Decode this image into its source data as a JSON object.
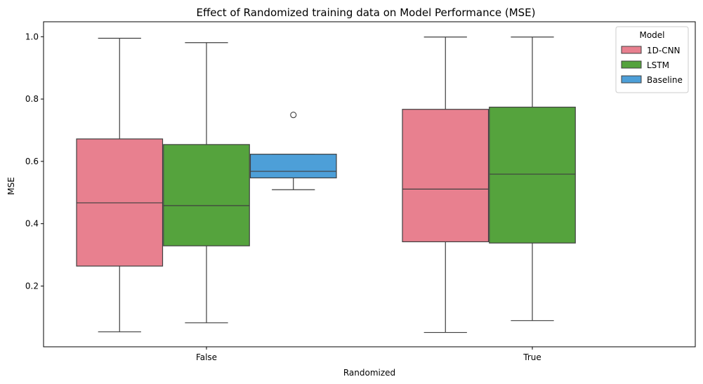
{
  "chart_data": {
    "type": "box",
    "title": "Effect of Randomized training data on Model Performance (MSE)",
    "xlabel": "Randomized",
    "ylabel": "MSE",
    "categories": [
      "False",
      "True"
    ],
    "y_ticks": [
      "0.2",
      "0.4",
      "0.6",
      "0.8",
      "1.0"
    ],
    "y_tick_values": [
      0.2,
      0.4,
      0.6,
      0.8,
      1.0
    ],
    "ylim": [
      0.005,
      1.048
    ],
    "grid": false,
    "legend": {
      "title": "Model",
      "placement": "top-right",
      "entries": [
        "1D-CNN",
        "LSTM",
        "Baseline"
      ]
    },
    "series": [
      {
        "name": "1D-CNN",
        "color": "#e8808f",
        "boxes": [
          {
            "category": "False",
            "min": 0.053,
            "q1": 0.264,
            "median": 0.467,
            "q3": 0.672,
            "max": 0.995,
            "outliers": []
          },
          {
            "category": "True",
            "min": 0.051,
            "q1": 0.342,
            "median": 0.511,
            "q3": 0.767,
            "max": 0.999,
            "outliers": []
          }
        ]
      },
      {
        "name": "LSTM",
        "color": "#55a33d",
        "boxes": [
          {
            "category": "False",
            "min": 0.082,
            "q1": 0.329,
            "median": 0.458,
            "q3": 0.654,
            "max": 0.981,
            "outliers": []
          },
          {
            "category": "True",
            "min": 0.089,
            "q1": 0.338,
            "median": 0.559,
            "q3": 0.774,
            "max": 0.999,
            "outliers": []
          }
        ]
      },
      {
        "name": "Baseline",
        "color": "#4d9fd8",
        "boxes": [
          {
            "category": "False",
            "min": 0.509,
            "q1": 0.547,
            "median": 0.568,
            "q3": 0.623,
            "max": 0.623,
            "outliers": [
              0.749
            ]
          }
        ]
      }
    ]
  }
}
